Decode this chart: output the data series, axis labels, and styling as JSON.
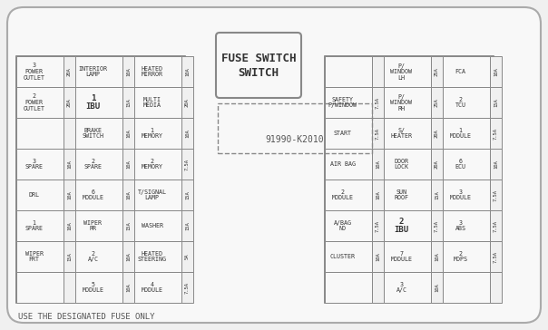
{
  "title": "FUSE SWITCH",
  "part_number": "91990-K2010",
  "footer": "USE THE DESIGNATED FUSE ONLY",
  "bg_color": "#f0f0f0",
  "panel_bg": "#f8f8f8",
  "border_color": "#888888",
  "text_color": "#333333",
  "left_panel": {
    "rows": [
      [
        {
          "label": "3\nPOWER\nOUTLET",
          "amp": "20A",
          "wide": true
        },
        {
          "label": "INTERIOR\nLAMP",
          "amp": "10A"
        },
        {
          "label": "HEATED\nMIRROR",
          "amp": "10A"
        }
      ],
      [
        {
          "label": "2\nPOWER\nOUTLET",
          "amp": "20A",
          "wide": true
        },
        {
          "label": "1\nIBU",
          "amp": "15A",
          "big": true
        },
        {
          "label": "MULTI\nMEDIA",
          "amp": "20A"
        }
      ],
      [
        {
          "label": "",
          "amp": "",
          "empty": true
        },
        {
          "label": "BRAKE\nSWITCH",
          "amp": "10A"
        },
        {
          "label": "1\nMEMORY",
          "amp": "10A"
        }
      ],
      [
        {
          "label": "3\nSPARE",
          "amp": "10A",
          "wide": true
        },
        {
          "label": "2\nSPARE",
          "amp": "10A"
        },
        {
          "label": "2\nMEMORY",
          "amp": "7.5A"
        }
      ],
      [
        {
          "label": "DRL",
          "amp": "10A",
          "wide": true,
          "big_label": true
        },
        {
          "label": "6\nMODULE",
          "amp": "10A"
        },
        {
          "label": "T/SIGNAL\nLAMP",
          "amp": "15A"
        }
      ],
      [
        {
          "label": "1\nSPARE",
          "amp": "10A",
          "wide": true
        },
        {
          "label": "WIPER\nRR",
          "amp": "15A"
        },
        {
          "label": "WASHER",
          "amp": "15A"
        }
      ],
      [
        {
          "label": "WIPER\nFRT",
          "amp": "15A",
          "wide": true
        },
        {
          "label": "2\nA/C",
          "amp": "10A"
        },
        {
          "label": "HEATED\nSTEERING",
          "amp": "5A"
        }
      ],
      [
        {
          "label": "",
          "amp": "",
          "empty": true
        },
        {
          "label": "5\nMODULE",
          "amp": "10A"
        },
        {
          "label": "4\nMODULE",
          "amp": "7.5A"
        }
      ]
    ]
  },
  "right_panel": {
    "rows": [
      [
        {
          "label": "",
          "amp": "",
          "empty": true
        },
        {
          "label": "P/\nWINDOW\nLH",
          "amp": "25A"
        },
        {
          "label": "FCA",
          "amp": "10A"
        }
      ],
      [
        {
          "label": "SAFETY\nP/WINDOW",
          "amp": "7.5A"
        },
        {
          "label": "P/\nWINDOW\nRH",
          "amp": "25A"
        },
        {
          "label": "2\nTCU",
          "amp": "15A"
        }
      ],
      [
        {
          "label": "START",
          "amp": "7.5A"
        },
        {
          "label": "S/\nHEATER",
          "amp": "20A"
        },
        {
          "label": "1\nMODULE",
          "amp": "7.5A"
        }
      ],
      [
        {
          "label": "AIR BAG",
          "amp": "10A"
        },
        {
          "label": "DOOR\nLOCK",
          "amp": "20A"
        },
        {
          "label": "6\nECU",
          "amp": "10A"
        }
      ],
      [
        {
          "label": "2\nMODULE",
          "amp": "10A"
        },
        {
          "label": "SUN\nROOF",
          "amp": "15A"
        },
        {
          "label": "3\nMODULE",
          "amp": "7.5A"
        }
      ],
      [
        {
          "label": "A/BAG\nND",
          "amp": "7.5A"
        },
        {
          "label": "2\nIBU",
          "amp": "7.5A",
          "big": true
        },
        {
          "label": "3\nABS",
          "amp": "7.5A"
        }
      ],
      [
        {
          "label": "CLUSTER",
          "amp": "10A"
        },
        {
          "label": "7\nMODULE",
          "amp": "10A"
        },
        {
          "label": "2\nMDPS",
          "amp": "7.5A"
        }
      ],
      [
        {
          "label": "",
          "amp": "",
          "empty": true
        },
        {
          "label": "3\nA/C",
          "amp": "10A"
        },
        {
          "label": "",
          "amp": "",
          "empty": true
        }
      ]
    ]
  }
}
